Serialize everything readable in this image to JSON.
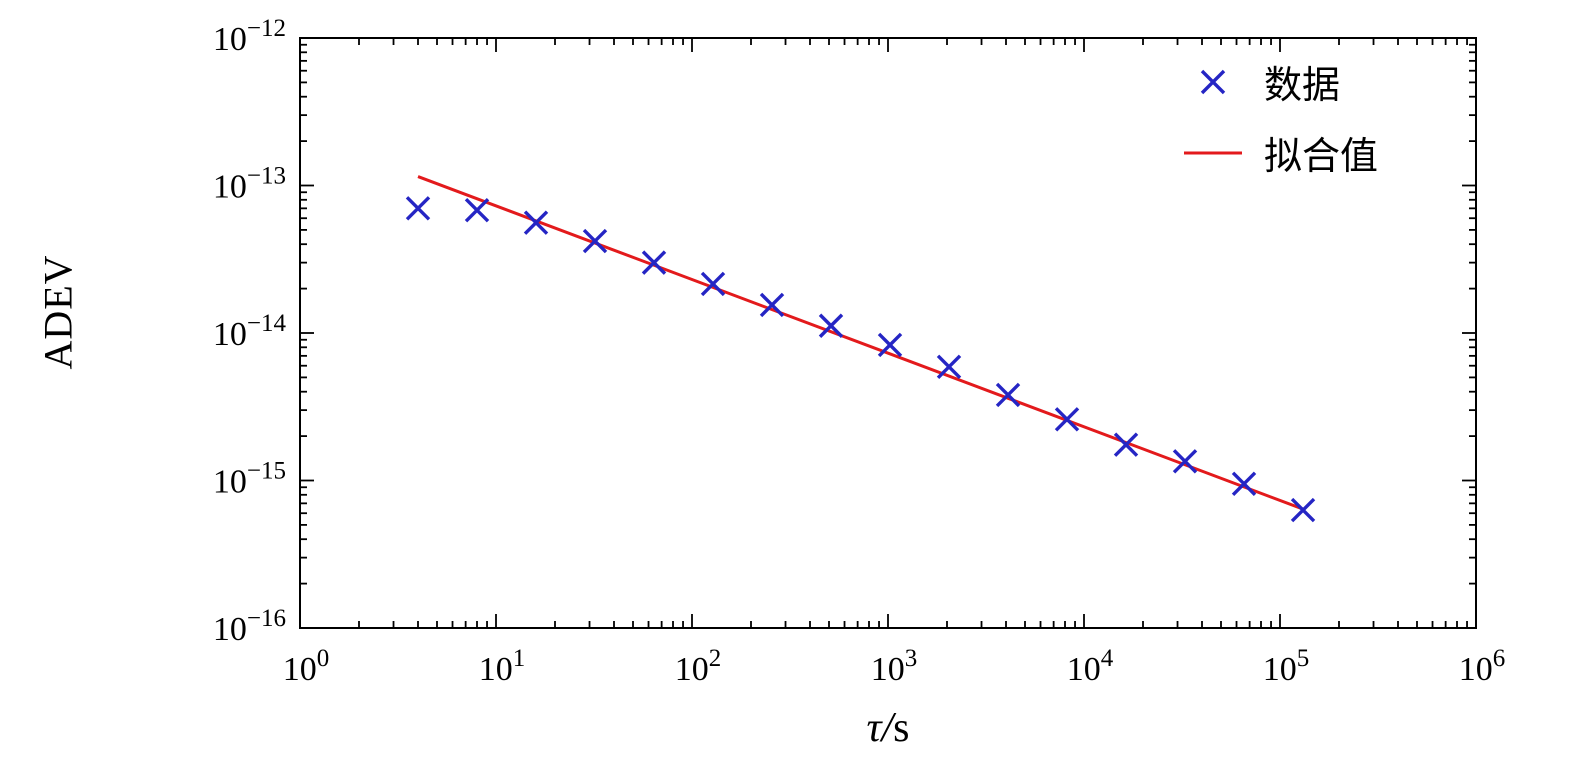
{
  "chart_data": {
    "type": "scatter+line",
    "title": "",
    "xlabel": "τ/s",
    "ylabel": "ADEV",
    "x_scale": "log",
    "y_scale": "log",
    "xlim": [
      1,
      1000000
    ],
    "ylim": [
      1e-16,
      1e-12
    ],
    "x_tick_exponents": [
      0,
      1,
      2,
      3,
      4,
      5,
      6
    ],
    "y_tick_exponents": [
      -12,
      -13,
      -14,
      -15,
      -16
    ],
    "grid": false,
    "legend_position": "upper right",
    "series": [
      {
        "name": "数据",
        "type": "scatter",
        "marker": "x",
        "color": "#2525c4",
        "x": [
          4,
          8,
          16,
          32,
          64,
          128,
          256,
          512,
          1024,
          2048,
          4096,
          8192,
          16384,
          32768,
          65536,
          131072
        ],
        "y": [
          7e-14,
          6.8e-14,
          5.6e-14,
          4.2e-14,
          3e-14,
          2.15e-14,
          1.55e-14,
          1.12e-14,
          8.3e-15,
          5.9e-15,
          3.8e-15,
          2.6e-15,
          1.75e-15,
          1.35e-15,
          9.5e-16,
          6.3e-16
        ]
      },
      {
        "name": "拟合值",
        "type": "line",
        "color": "#e31a1c",
        "x": [
          4,
          131072
        ],
        "y": [
          1.15e-13,
          6.4e-16
        ]
      }
    ]
  }
}
